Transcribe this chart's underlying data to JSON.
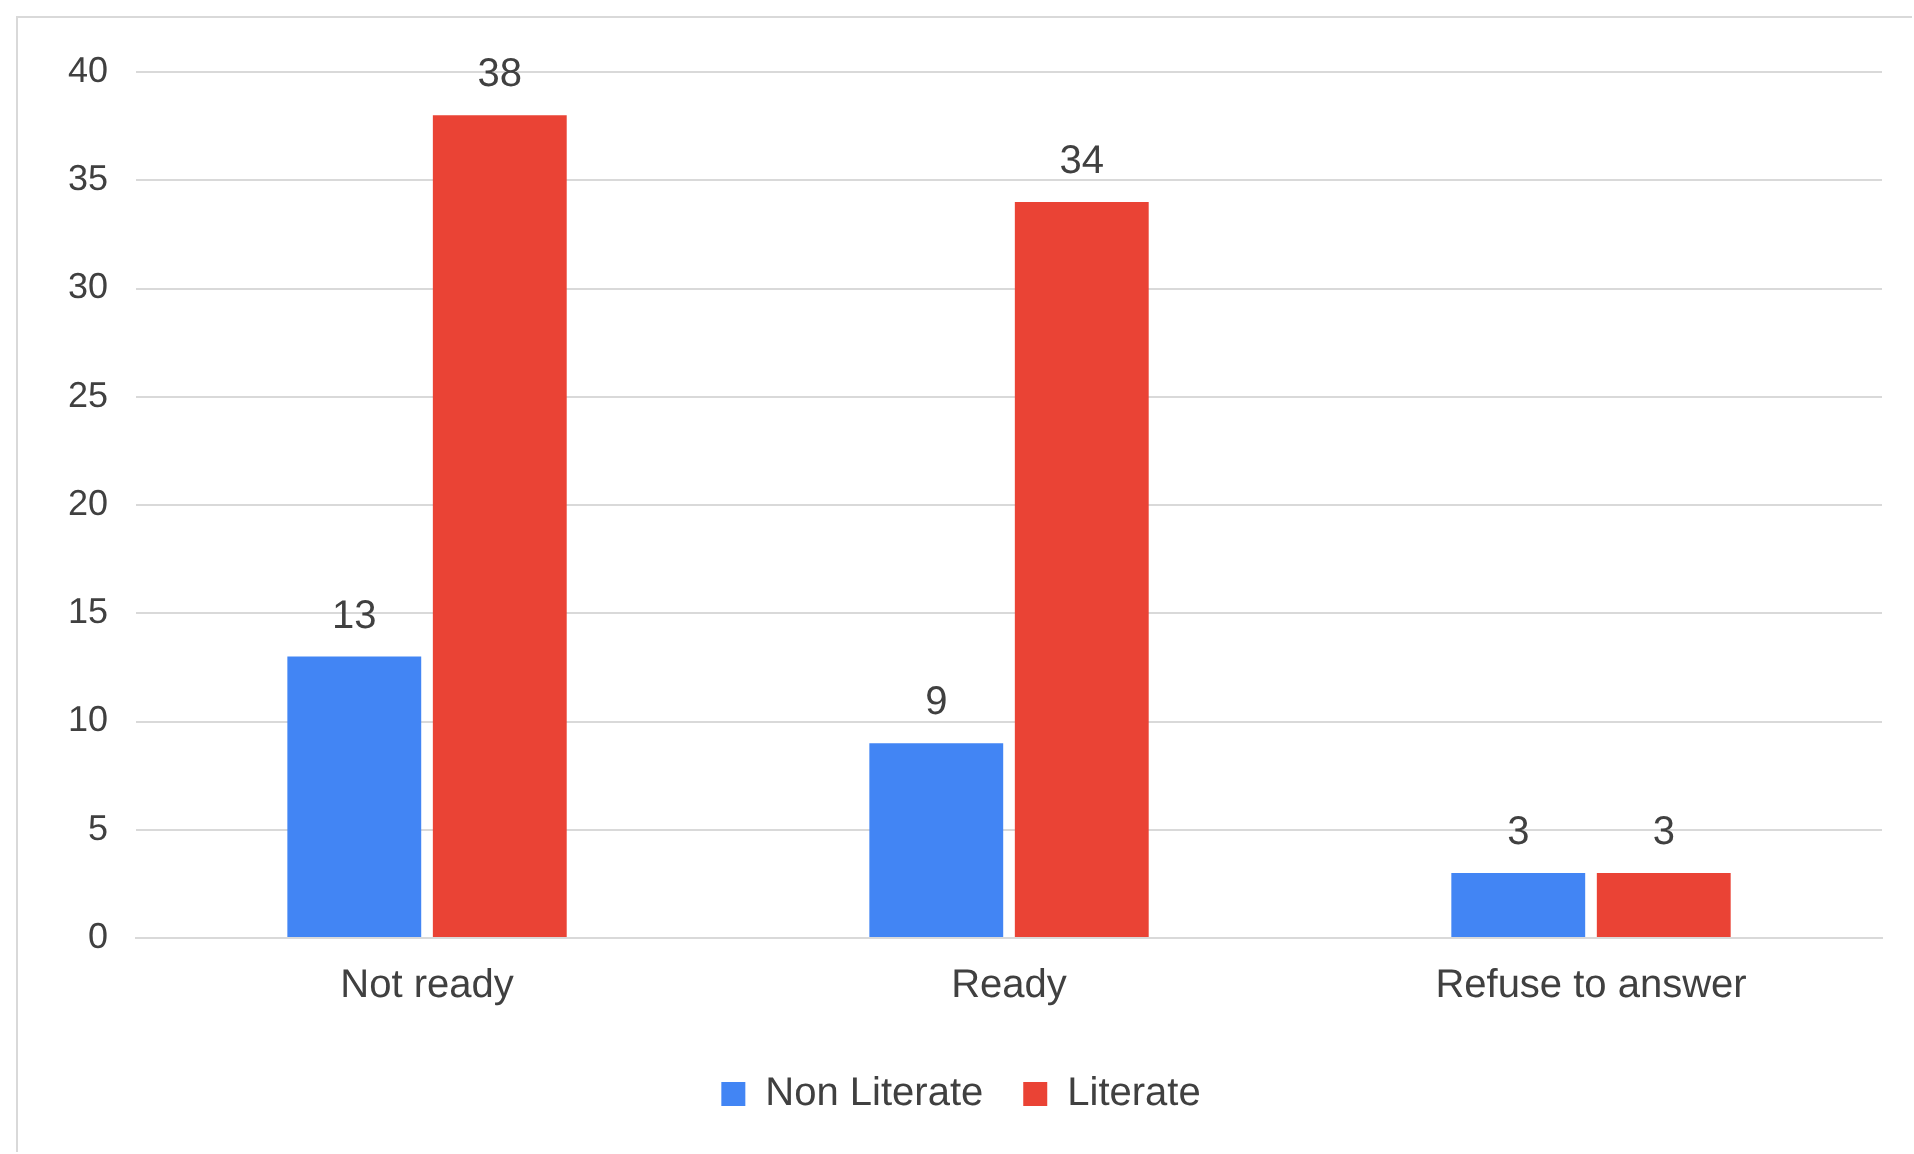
{
  "chart_data": {
    "type": "bar",
    "categories": [
      "Not ready",
      "Ready",
      "Refuse to answer"
    ],
    "series": [
      {
        "name": "Non Literate",
        "color": "#4285f4",
        "values": [
          13,
          9,
          3
        ]
      },
      {
        "name": "Literate",
        "color": "#ea4335",
        "values": [
          38,
          34,
          3
        ]
      }
    ],
    "ylim": [
      0,
      40
    ],
    "yticks": [
      0,
      5,
      10,
      15,
      20,
      25,
      30,
      35,
      40
    ],
    "grid": "y",
    "legend": "bottom",
    "data_labels": true
  }
}
